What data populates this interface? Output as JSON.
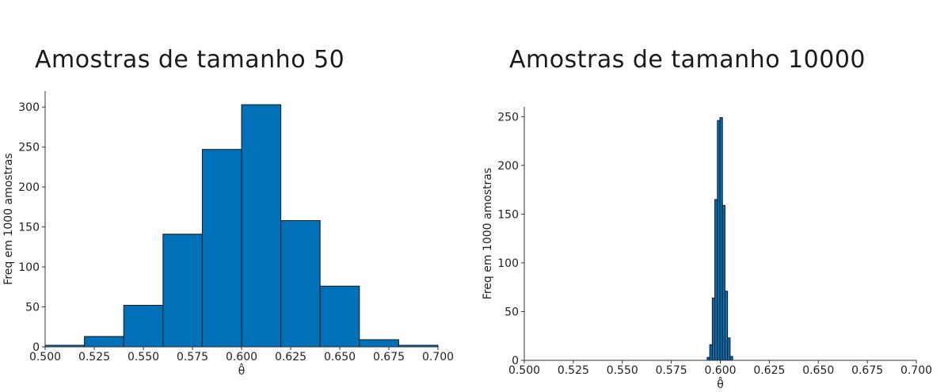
{
  "chart_data": [
    {
      "type": "bar",
      "title": "Amostras de tamanho 50",
      "xlabel": "θ̂",
      "ylabel": "Freq em 1000 amostras",
      "xlim": [
        0.5,
        0.7
      ],
      "ylim": [
        0,
        320
      ],
      "xticks": [
        "0.500",
        "0.525",
        "0.550",
        "0.575",
        "0.600",
        "0.625",
        "0.650",
        "0.675",
        "0.700"
      ],
      "yticks": [
        "0",
        "50",
        "100",
        "150",
        "200",
        "250",
        "300"
      ],
      "bins": [
        {
          "x0": 0.48,
          "x1": 0.52,
          "value": 2
        },
        {
          "x0": 0.52,
          "x1": 0.54,
          "value": 13
        },
        {
          "x0": 0.54,
          "x1": 0.56,
          "value": 52
        },
        {
          "x0": 0.56,
          "x1": 0.58,
          "value": 141
        },
        {
          "x0": 0.58,
          "x1": 0.6,
          "value": 247
        },
        {
          "x0": 0.6,
          "x1": 0.62,
          "value": 303
        },
        {
          "x0": 0.62,
          "x1": 0.64,
          "value": 158
        },
        {
          "x0": 0.64,
          "x1": 0.66,
          "value": 76
        },
        {
          "x0": 0.66,
          "x1": 0.68,
          "value": 9
        },
        {
          "x0": 0.68,
          "x1": 0.7,
          "value": 2
        }
      ],
      "bar_color": "#0070b8",
      "edge_color": "#1a1a1a",
      "grid": false
    },
    {
      "type": "bar",
      "title": "Amostras de tamanho 10000",
      "xlabel": "θ̂",
      "ylabel": "Freq em 1000 amostras",
      "xlim": [
        0.5,
        0.7
      ],
      "ylim": [
        0,
        260
      ],
      "xticks": [
        "0.500",
        "0.525",
        "0.550",
        "0.575",
        "0.600",
        "0.625",
        "0.650",
        "0.675",
        "0.700"
      ],
      "yticks": [
        "0",
        "50",
        "100",
        "150",
        "200",
        "250"
      ],
      "bins": [
        {
          "x0": 0.5933,
          "x1": 0.5946,
          "value": 3
        },
        {
          "x0": 0.5946,
          "x1": 0.5959,
          "value": 16
        },
        {
          "x0": 0.5959,
          "x1": 0.5972,
          "value": 64
        },
        {
          "x0": 0.5972,
          "x1": 0.5985,
          "value": 165
        },
        {
          "x0": 0.5985,
          "x1": 0.5998,
          "value": 246
        },
        {
          "x0": 0.5998,
          "x1": 0.6011,
          "value": 249
        },
        {
          "x0": 0.6011,
          "x1": 0.6024,
          "value": 159
        },
        {
          "x0": 0.6024,
          "x1": 0.6037,
          "value": 71
        },
        {
          "x0": 0.6037,
          "x1": 0.605,
          "value": 23
        },
        {
          "x0": 0.605,
          "x1": 0.6063,
          "value": 4
        }
      ],
      "bar_color": "#0070b8",
      "edge_color": "#1a1a1a",
      "grid": false
    }
  ]
}
